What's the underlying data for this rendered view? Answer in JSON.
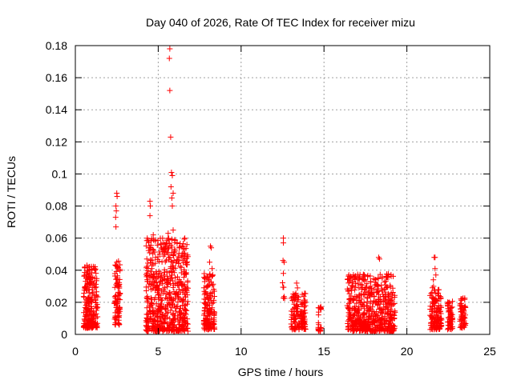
{
  "chart_data": {
    "type": "scatter",
    "title": "Day 040 of 2026, Rate Of TEC Index for receiver mizu",
    "xlabel": "GPS time / hours",
    "ylabel": "ROTI / TECUs",
    "xlim": [
      0,
      25
    ],
    "ylim": [
      0,
      0.18
    ],
    "xticks": [
      0,
      5,
      10,
      15,
      20,
      25
    ],
    "yticks": [
      0,
      0.02,
      0.04,
      0.06,
      0.08,
      0.1,
      0.12,
      0.14,
      0.16,
      0.18
    ],
    "xtick_labels": [
      "0",
      "5",
      "10",
      "15",
      "20",
      "25"
    ],
    "ytick_labels": [
      "0",
      "0.02",
      "0.04",
      "0.06",
      "0.08",
      "0.1",
      "0.12",
      "0.14",
      "0.16",
      "0.18"
    ],
    "grid": true,
    "marker": "+",
    "series": [
      {
        "name": "ROTI",
        "color": "#ff0000",
        "clusters": [
          {
            "x0": 0.5,
            "x1": 1.35,
            "ymin": 0.004,
            "ymax": 0.043,
            "n": 220,
            "spikes": [
              [
                0.7,
                0.043
              ],
              [
                1.0,
                0.04
              ],
              [
                0.8,
                0.036
              ]
            ]
          },
          {
            "x0": 2.35,
            "x1": 2.7,
            "ymin": 0.006,
            "ymax": 0.046,
            "n": 90,
            "spikes": [
              [
                2.5,
                0.088
              ],
              [
                2.52,
                0.086
              ],
              [
                2.45,
                0.08
              ],
              [
                2.47,
                0.077
              ],
              [
                2.43,
                0.073
              ],
              [
                2.45,
                0.067
              ],
              [
                2.5,
                0.045
              ],
              [
                2.55,
                0.041
              ]
            ]
          },
          {
            "x0": 4.25,
            "x1": 6.8,
            "ymin": 0.002,
            "ymax": 0.06,
            "n": 620,
            "spikes": [
              [
                5.7,
                0.178
              ],
              [
                5.67,
                0.172
              ],
              [
                5.7,
                0.152
              ],
              [
                5.75,
                0.123
              ],
              [
                5.8,
                0.101
              ],
              [
                5.85,
                0.099
              ],
              [
                5.77,
                0.092
              ],
              [
                5.9,
                0.088
              ],
              [
                5.82,
                0.085
              ],
              [
                5.85,
                0.08
              ],
              [
                4.5,
                0.083
              ],
              [
                4.52,
                0.08
              ],
              [
                4.5,
                0.074
              ],
              [
                5.9,
                0.065
              ],
              [
                5.6,
                0.063
              ],
              [
                4.7,
                0.062
              ],
              [
                6.0,
                0.059
              ]
            ]
          },
          {
            "x0": 7.75,
            "x1": 8.4,
            "ymin": 0.003,
            "ymax": 0.038,
            "n": 150,
            "spikes": [
              [
                8.15,
                0.055
              ],
              [
                8.2,
                0.054
              ],
              [
                8.1,
                0.045
              ],
              [
                8.25,
                0.041
              ]
            ]
          },
          {
            "x0": 12.5,
            "x1": 12.65,
            "ymin": 0.022,
            "ymax": 0.06,
            "n": 8,
            "spikes": [
              [
                12.55,
                0.06
              ],
              [
                12.55,
                0.057
              ],
              [
                12.6,
                0.045
              ],
              [
                12.55,
                0.038
              ]
            ]
          },
          {
            "x0": 13.0,
            "x1": 13.9,
            "ymin": 0.003,
            "ymax": 0.026,
            "n": 130,
            "spikes": [
              [
                13.35,
                0.032
              ],
              [
                13.4,
                0.029
              ]
            ]
          },
          {
            "x0": 14.65,
            "x1": 14.85,
            "ymin": 0.002,
            "ymax": 0.018,
            "n": 25,
            "spikes": []
          },
          {
            "x0": 16.4,
            "x1": 19.3,
            "ymin": 0.002,
            "ymax": 0.038,
            "n": 560,
            "spikes": [
              [
                18.3,
                0.048
              ],
              [
                18.35,
                0.047
              ],
              [
                16.5,
                0.037
              ],
              [
                16.55,
                0.035
              ]
            ]
          },
          {
            "x0": 21.4,
            "x1": 22.1,
            "ymin": 0.003,
            "ymax": 0.03,
            "n": 140,
            "spikes": [
              [
                21.65,
                0.048
              ],
              [
                21.7,
                0.048
              ],
              [
                21.7,
                0.041
              ],
              [
                21.75,
                0.037
              ],
              [
                21.6,
                0.034
              ]
            ]
          },
          {
            "x0": 22.45,
            "x1": 22.75,
            "ymin": 0.003,
            "ymax": 0.021,
            "n": 60,
            "spikes": []
          },
          {
            "x0": 23.2,
            "x1": 23.55,
            "ymin": 0.004,
            "ymax": 0.023,
            "n": 60,
            "spikes": []
          }
        ]
      }
    ]
  }
}
